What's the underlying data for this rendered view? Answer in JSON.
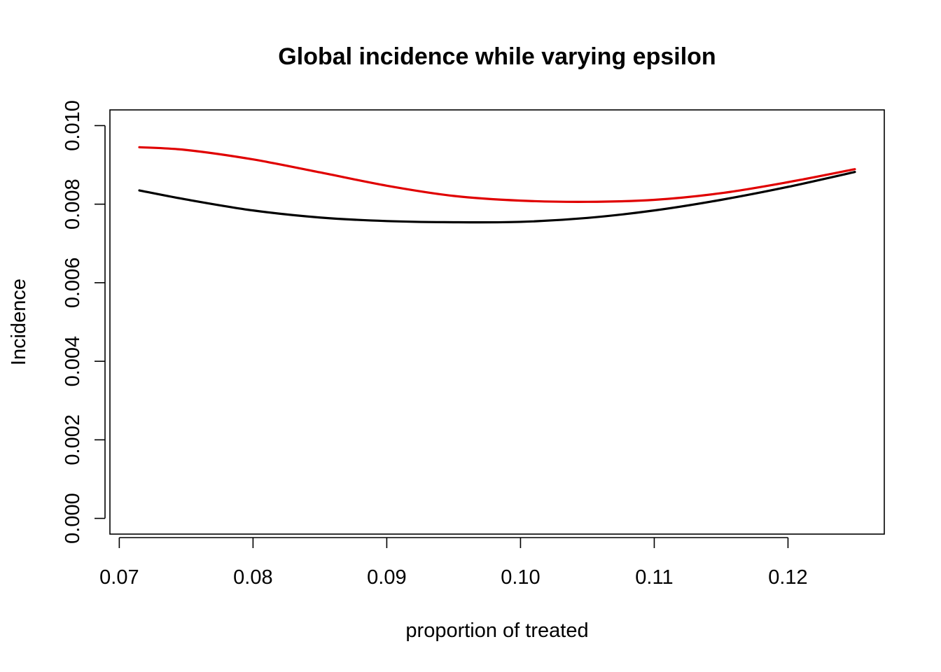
{
  "chart_data": {
    "type": "line",
    "title": "Global incidence while varying epsilon",
    "xlabel": "proportion of treated",
    "ylabel": "Incidence",
    "xlim": [
      0.0693,
      0.1272
    ],
    "ylim": [
      -0.0004,
      0.0104
    ],
    "x_ticks": [
      0.07,
      0.08,
      0.09,
      0.1,
      0.11,
      0.12
    ],
    "x_tick_labels": [
      "0.07",
      "0.08",
      "0.09",
      "0.10",
      "0.11",
      "0.12"
    ],
    "y_ticks": [
      0.0,
      0.002,
      0.004,
      0.006,
      0.008,
      0.01
    ],
    "y_tick_labels": [
      "0.000",
      "0.002",
      "0.004",
      "0.006",
      "0.008",
      "0.010"
    ],
    "grid": false,
    "legend": "none",
    "series": [
      {
        "color": "#000000",
        "x": [
          0.0715,
          0.075,
          0.08,
          0.085,
          0.09,
          0.095,
          0.1,
          0.105,
          0.11,
          0.115,
          0.12,
          0.125
        ],
        "y": [
          0.00835,
          0.00812,
          0.00784,
          0.00766,
          0.00757,
          0.00754,
          0.00755,
          0.00765,
          0.00784,
          0.00811,
          0.00844,
          0.00882
        ]
      },
      {
        "color": "#e00000",
        "x": [
          0.0715,
          0.075,
          0.08,
          0.085,
          0.09,
          0.095,
          0.1,
          0.105,
          0.11,
          0.115,
          0.12,
          0.125
        ],
        "y": [
          0.00945,
          0.00938,
          0.00914,
          0.00881,
          0.00847,
          0.00821,
          0.00809,
          0.00806,
          0.00811,
          0.00828,
          0.00856,
          0.00889
        ]
      }
    ]
  }
}
